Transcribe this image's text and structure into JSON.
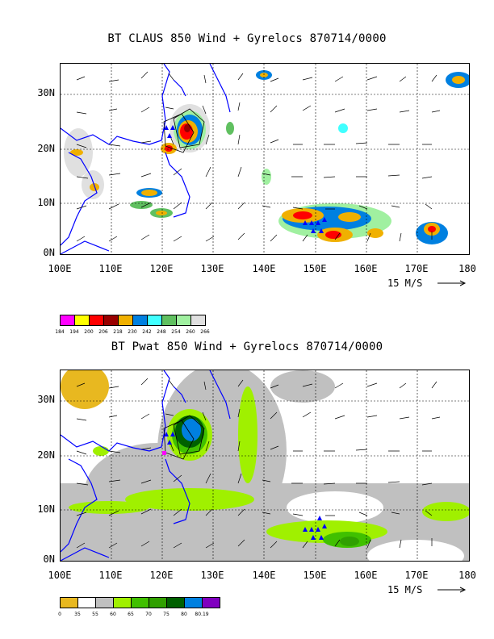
{
  "panel1": {
    "title": "BT CLAUS 850 Wind + Gyrelocs 870714/0000",
    "lat_labels": [
      "30N",
      "20N",
      "10N",
      "0N"
    ],
    "lon_labels": [
      "100E",
      "110E",
      "120E",
      "130E",
      "140E",
      "150E",
      "160E",
      "170E",
      "180"
    ],
    "scale_label": "15 M/S",
    "legend": {
      "colors": [
        "#ff00ff",
        "#ffff00",
        "#ff0000",
        "#990000",
        "#f0b000",
        "#0080e0",
        "#40ffff",
        "#60c060",
        "#a0f0a0",
        "#e0e0e0"
      ],
      "labels": [
        "184",
        "194",
        "200",
        "206",
        "218",
        "230",
        "242",
        "248",
        "254",
        "260",
        "266"
      ]
    }
  },
  "panel2": {
    "title": "BT Pwat 850 Wind + Gyrelocs 870714/0000",
    "lat_labels": [
      "30N",
      "20N",
      "10N",
      "0N"
    ],
    "lon_labels": [
      "100E",
      "110E",
      "120E",
      "130E",
      "140E",
      "150E",
      "160E",
      "170E",
      "180"
    ],
    "scale_label": "15 M/S",
    "legend": {
      "colors": [
        "#e8b820",
        "#ffffff",
        "#c0c0c0",
        "#a0f000",
        "#40c000",
        "#30a000",
        "#006000",
        "#0080e0",
        "#8000c0"
      ],
      "labels": [
        "0",
        "35",
        "55",
        "60",
        "65",
        "70",
        "75",
        "80",
        "80.19"
      ]
    }
  }
}
